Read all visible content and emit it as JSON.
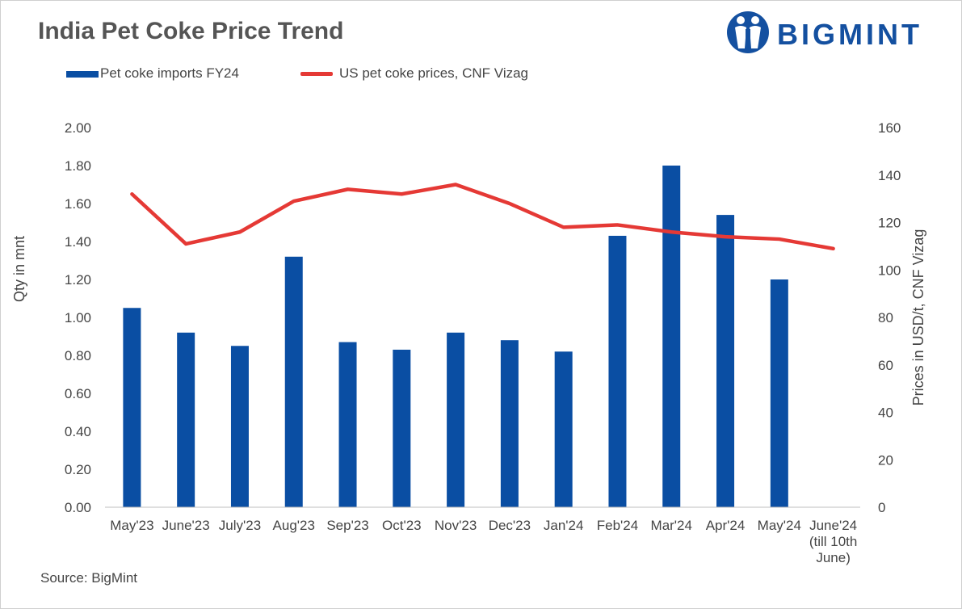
{
  "title": "India Pet Coke Price Trend",
  "logo": {
    "text": "BIGMINT",
    "icon": "bigmint-logo-icon",
    "color": "#1450a0"
  },
  "source": "Source: BigMint",
  "chart_data": {
    "type": "bar+line",
    "categories": [
      "May'23",
      "June'23",
      "July'23",
      "Aug'23",
      "Sep'23",
      "Oct'23",
      "Nov'23",
      "Dec'23",
      "Jan'24",
      "Feb'24",
      "Mar'24",
      "Apr'24",
      "May'24",
      "June'24"
    ],
    "category_sublabels": {
      "13": [
        "(till 10th",
        "June)"
      ]
    },
    "series": [
      {
        "name": "Pet coke imports FY24",
        "type": "bar",
        "axis": "left",
        "color": "#0a4ea3",
        "values": [
          1.05,
          0.92,
          0.85,
          1.32,
          0.87,
          0.83,
          0.92,
          0.88,
          0.82,
          1.43,
          1.8,
          1.54,
          1.2,
          null
        ]
      },
      {
        "name": "US pet coke prices, CNF Vizag",
        "type": "line",
        "axis": "right",
        "color": "#e53935",
        "values": [
          132,
          111,
          116,
          129,
          134,
          132,
          136,
          128,
          118,
          119,
          116,
          114,
          113,
          109
        ]
      }
    ],
    "ylabel": "Qty in mnt",
    "y2label": "Prices in USD/t, CNF Vizag",
    "ylim": [
      0,
      2.0
    ],
    "y2lim": [
      0,
      160
    ],
    "yticks": [
      "0.00",
      "0.20",
      "0.40",
      "0.60",
      "0.80",
      "1.00",
      "1.20",
      "1.40",
      "1.60",
      "1.80",
      "2.00"
    ],
    "y2ticks": [
      "0",
      "20",
      "40",
      "60",
      "80",
      "100",
      "120",
      "140",
      "160"
    ],
    "grid": false,
    "legend": "top-left"
  }
}
